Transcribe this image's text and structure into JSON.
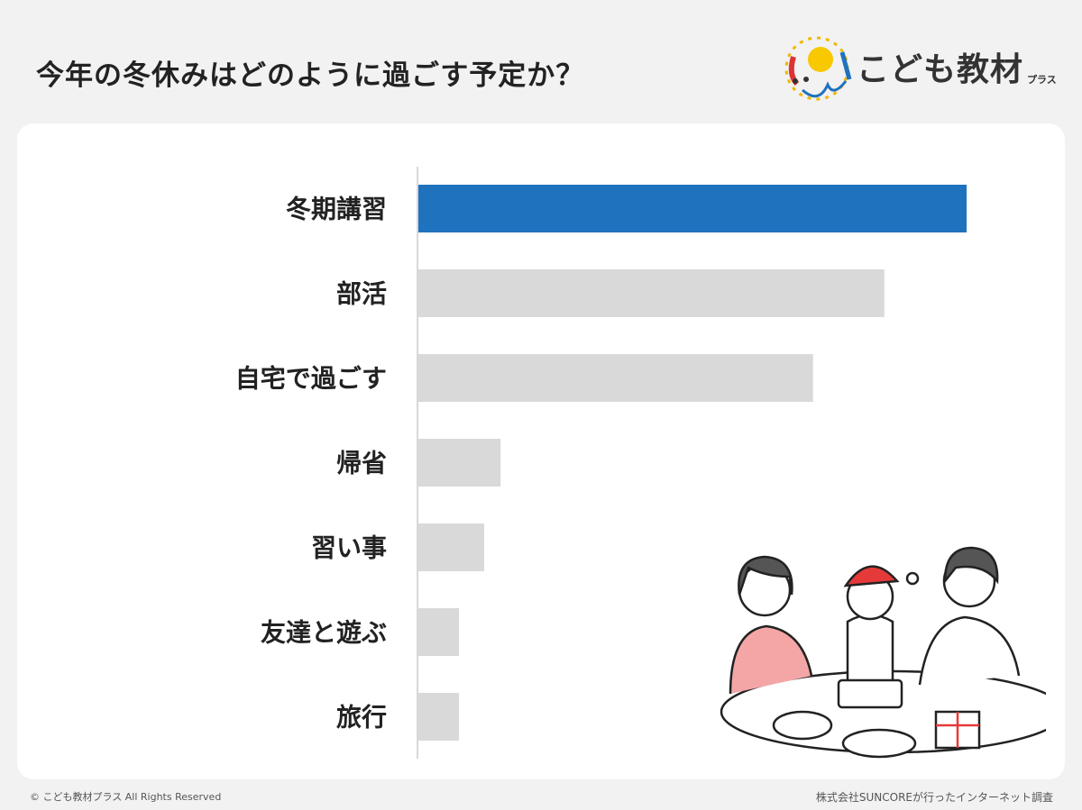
{
  "logo": {
    "name": "こども教材",
    "sub": "プラス"
  },
  "footer": {
    "copyright": "© こども教材プラス All Rights Reserved",
    "source": "株式会社SUNCOREが行ったインターネット調査"
  },
  "colors": {
    "highlight": "#1f72be",
    "bar": "#d9d9d9",
    "background": "#f2f2f2"
  },
  "chart_data": {
    "type": "bar",
    "orientation": "horizontal",
    "title": "今年の冬休みはどのように過ごす予定か？",
    "xlabel": "",
    "ylabel": "",
    "grid": false,
    "categories": [
      "冬期講習",
      "部活",
      "自宅で過ごす",
      "帰省",
      "習い事",
      "友達と遊ぶ",
      "旅行"
    ],
    "values": [
      100,
      85,
      72,
      15,
      12,
      7.4,
      7.4
    ],
    "xlim": [
      0,
      100
    ],
    "highlight_index": 0
  }
}
